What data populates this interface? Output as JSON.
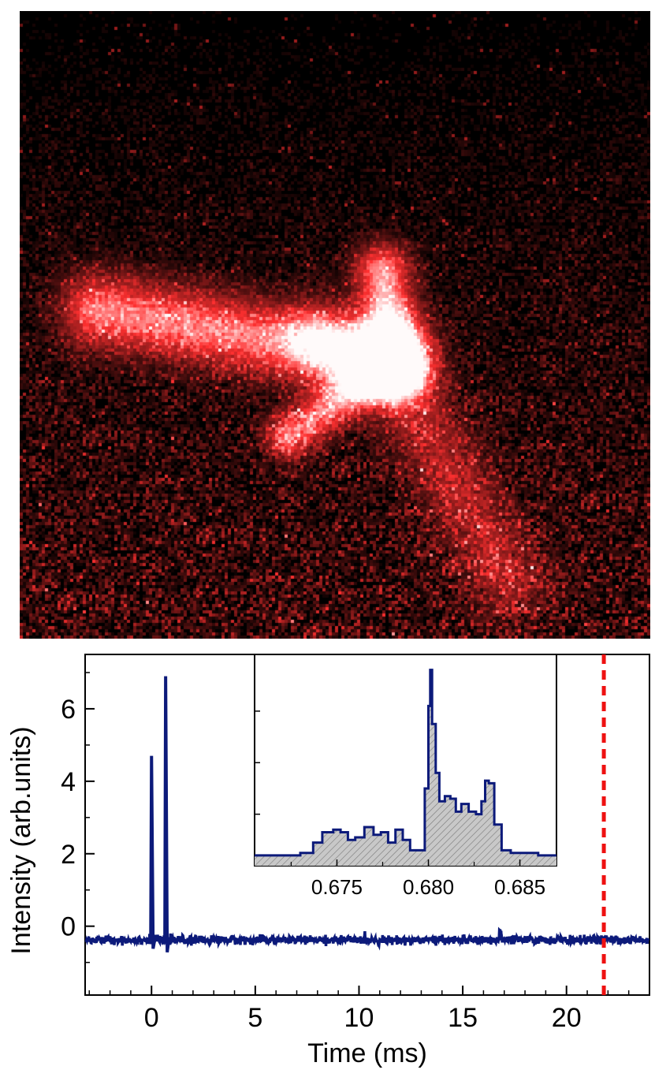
{
  "image": {
    "description_colors": {
      "background": "#000000",
      "signal": "#ff4a4a",
      "core": "#ffe6e6"
    }
  },
  "chart_data": [
    {
      "type": "line",
      "xlabel": "Time (ms)",
      "ylabel": "Intensity (arb.units)",
      "xlim": [
        -3.2,
        24.0
      ],
      "ylim": [
        -1.9,
        7.5
      ],
      "xticks": [
        0,
        5,
        10,
        15,
        20
      ],
      "xtick_labels": [
        "0",
        "5",
        "10",
        "15",
        "20"
      ],
      "yticks": [
        0,
        2,
        4,
        6
      ],
      "ytick_labels": [
        "0",
        "2",
        "4",
        "6"
      ],
      "baseline": -0.38,
      "noise_amplitude": 0.08,
      "peaks": [
        {
          "x": 0.0,
          "y": 4.7
        },
        {
          "x": 0.68,
          "y": 6.9
        }
      ],
      "dips": [
        {
          "x": 0.05,
          "y": -0.62
        },
        {
          "x": 0.75,
          "y": -0.72
        }
      ],
      "marker_line": {
        "x": 21.8,
        "style": "dashed",
        "color": "#ee1111"
      },
      "line_color": "#0c1a7a",
      "grid": false
    },
    {
      "type": "area",
      "inset": true,
      "xlim": [
        0.6705,
        0.687
      ],
      "xticks": [
        0.675,
        0.68,
        0.685
      ],
      "xtick_labels": [
        "0.675",
        "0.680",
        "0.685"
      ],
      "ylim": [
        0,
        8.2
      ],
      "fill": "hatched gray",
      "line_color": "#0c1a7a",
      "x": [
        0.6705,
        0.672,
        0.673,
        0.6737,
        0.6742,
        0.6748,
        0.6752,
        0.6756,
        0.676,
        0.6765,
        0.677,
        0.6774,
        0.6778,
        0.6782,
        0.6786,
        0.679,
        0.6794,
        0.6798,
        0.68,
        0.6801,
        0.6802,
        0.6804,
        0.6806,
        0.6809,
        0.6812,
        0.6815,
        0.6818,
        0.6822,
        0.6826,
        0.6829,
        0.6831,
        0.6833,
        0.6836,
        0.684,
        0.6845,
        0.685,
        0.686,
        0.687
      ],
      "y": [
        0.4,
        0.4,
        0.5,
        0.9,
        1.3,
        1.4,
        1.3,
        1.0,
        1.1,
        1.5,
        1.2,
        1.3,
        0.9,
        1.4,
        1.0,
        0.6,
        0.6,
        3.0,
        6.2,
        7.6,
        5.5,
        3.6,
        2.5,
        2.7,
        2.6,
        2.1,
        2.4,
        2.1,
        2.0,
        2.5,
        3.3,
        3.2,
        1.6,
        0.6,
        0.5,
        0.5,
        0.4,
        0.4
      ]
    }
  ]
}
